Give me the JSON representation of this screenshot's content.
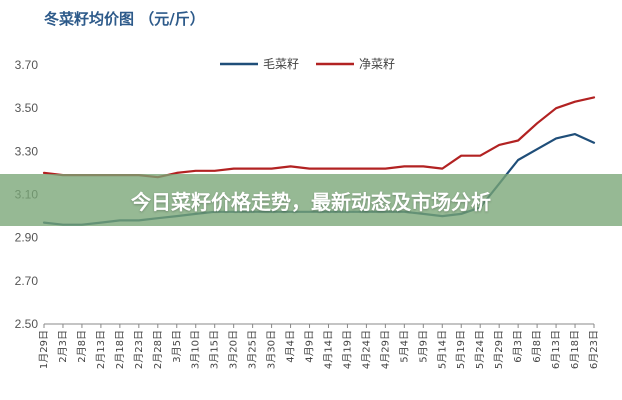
{
  "chart_data": {
    "type": "line",
    "title": "冬菜籽均价图 （元/斤）",
    "ylim": [
      2.5,
      3.7
    ],
    "y_ticks": [
      "3.70",
      "3.50",
      "3.30",
      "3.10",
      "2.90",
      "2.70",
      "2.50"
    ],
    "grid": false,
    "legend_position": "top-center",
    "x": [
      "1月29日",
      "2月3日",
      "2月8日",
      "2月13日",
      "2月18日",
      "2月23日",
      "2月28日",
      "3月5日",
      "3月10日",
      "3月15日",
      "3月20日",
      "3月25日",
      "3月30日",
      "4月4日",
      "4月9日",
      "4月14日",
      "4月19日",
      "4月24日",
      "4月29日",
      "5月4日",
      "5月9日",
      "5月14日",
      "5月19日",
      "5月24日",
      "5月29日",
      "6月3日",
      "6月8日",
      "6月13日",
      "6月18日",
      "6月23日"
    ],
    "series": [
      {
        "name": "毛菜籽",
        "color": "#1f4e79",
        "values": [
          2.97,
          2.96,
          2.96,
          2.97,
          2.98,
          2.98,
          2.99,
          3.0,
          3.01,
          3.02,
          3.02,
          3.02,
          3.02,
          3.02,
          3.02,
          3.02,
          3.02,
          3.02,
          3.02,
          3.02,
          3.01,
          3.0,
          3.01,
          3.04,
          3.15,
          3.26,
          3.31,
          3.36,
          3.38,
          3.34
        ]
      },
      {
        "name": "净菜籽",
        "color": "#b22222",
        "values": [
          3.2,
          3.19,
          3.19,
          3.19,
          3.19,
          3.19,
          3.18,
          3.2,
          3.21,
          3.21,
          3.22,
          3.22,
          3.22,
          3.23,
          3.22,
          3.22,
          3.22,
          3.22,
          3.22,
          3.23,
          3.23,
          3.22,
          3.28,
          3.28,
          3.33,
          3.35,
          3.43,
          3.5,
          3.53,
          3.55
        ]
      }
    ]
  },
  "banner": {
    "text": "今日菜籽价格走势，最新动态及市场分析"
  }
}
